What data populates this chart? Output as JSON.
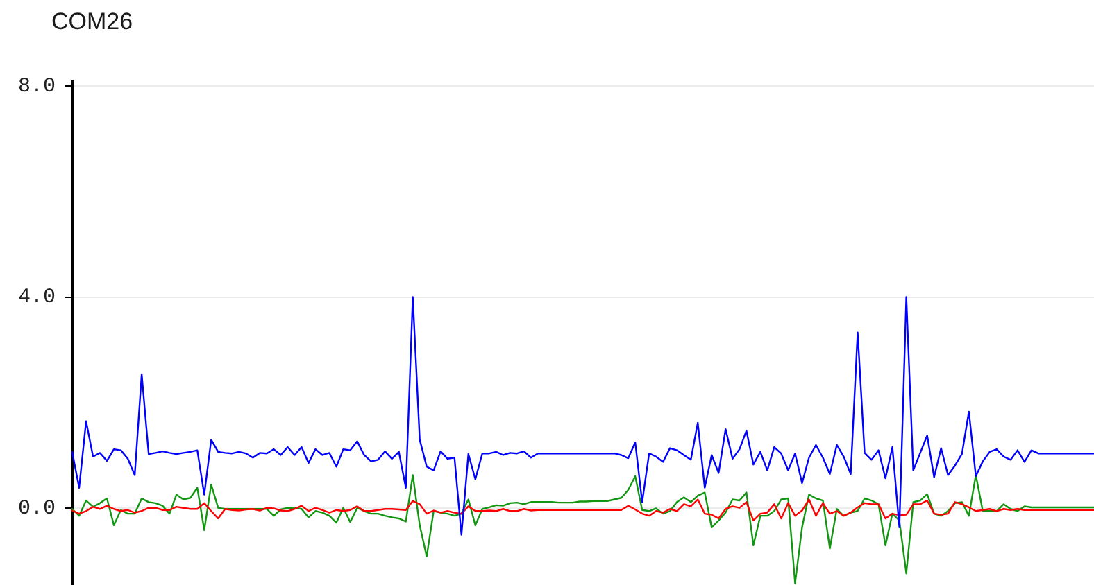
{
  "chart_data": {
    "type": "line",
    "title": "COM26",
    "categories": [
      null,
      null,
      null,
      null,
      null,
      null,
      null,
      null,
      null,
      null,
      null,
      null,
      null,
      null,
      null,
      null,
      null,
      null,
      null,
      null,
      null,
      null,
      null,
      null,
      null,
      null,
      null,
      null,
      null,
      null,
      null,
      null,
      null,
      null,
      null,
      null,
      null,
      null,
      null,
      null,
      null,
      null,
      null,
      null,
      null,
      null,
      null,
      null,
      null,
      null,
      null,
      null,
      null,
      null,
      null,
      null,
      null,
      null,
      null,
      null,
      null,
      null,
      null,
      null,
      null,
      null,
      null,
      null,
      null,
      null,
      null,
      null,
      null,
      null,
      null,
      null,
      null,
      null,
      null,
      null,
      null,
      null,
      null,
      null,
      null,
      null,
      null,
      null,
      null,
      null,
      null,
      null,
      null,
      null,
      null,
      null,
      null,
      null,
      null,
      null,
      null,
      null,
      null,
      null,
      null,
      null,
      null,
      null,
      null,
      null,
      null,
      null,
      null,
      null,
      null,
      null,
      null,
      null,
      null,
      null,
      null,
      null,
      null,
      null,
      null,
      null,
      null,
      null,
      null,
      null,
      null,
      null,
      null,
      null,
      null,
      null,
      null,
      null,
      null,
      null,
      null,
      null,
      null,
      null,
      null,
      null,
      null,
      null
    ],
    "series": [
      {
        "color": "#0000ff",
        "values": [
          1.07,
          0.39,
          1.65,
          0.98,
          1.05,
          0.9,
          1.12,
          1.1,
          0.94,
          0.63,
          2.54,
          1.03,
          1.05,
          1.08,
          1.05,
          1.03,
          1.05,
          1.07,
          1.1,
          0.26,
          1.3,
          1.07,
          1.05,
          1.04,
          1.07,
          1.04,
          0.96,
          1.05,
          1.04,
          1.12,
          1.01,
          1.16,
          1.01,
          1.16,
          0.86,
          1.12,
          1.01,
          1.05,
          0.79,
          1.12,
          1.1,
          1.27,
          1.01,
          0.89,
          0.92,
          1.08,
          0.94,
          1.07,
          0.39,
          4.0,
          1.3,
          0.79,
          0.72,
          1.08,
          0.94,
          0.96,
          -0.5,
          1.03,
          0.55,
          1.04,
          1.04,
          1.07,
          1.01,
          1.05,
          1.04,
          1.08,
          0.96,
          1.04,
          1.04,
          1.04,
          1.04,
          1.04,
          1.04,
          1.04,
          1.04,
          1.04,
          1.04,
          1.04,
          1.04,
          1.01,
          0.95,
          1.25,
          0.12,
          1.04,
          0.98,
          0.88,
          1.14,
          1.1,
          1.01,
          0.92,
          1.62,
          0.39,
          1.01,
          0.67,
          1.5,
          0.94,
          1.12,
          1.47,
          0.83,
          1.07,
          0.72,
          1.16,
          1.04,
          0.72,
          1.04,
          0.48,
          0.96,
          1.2,
          0.96,
          0.65,
          1.2,
          0.98,
          0.65,
          3.33,
          1.05,
          0.92,
          1.1,
          0.57,
          1.16,
          -0.36,
          4.0,
          0.72,
          1.05,
          1.38,
          0.59,
          1.14,
          0.63,
          0.81,
          1.03,
          1.83,
          0.61,
          0.89,
          1.07,
          1.12,
          0.98,
          0.92,
          1.1,
          0.88,
          1.1,
          1.04,
          1.04,
          1.04,
          1.04,
          1.04,
          1.04,
          1.04,
          1.04,
          1.04
        ]
      },
      {
        "color": "#ff0000",
        "values": [
          -0.04,
          -0.1,
          -0.05,
          0.03,
          -0.01,
          0.05,
          -0.01,
          -0.05,
          -0.03,
          -0.08,
          -0.05,
          0.01,
          0.01,
          -0.03,
          -0.03,
          0.03,
          0.01,
          -0.01,
          -0.01,
          0.1,
          -0.05,
          -0.19,
          -0.01,
          -0.03,
          -0.04,
          -0.02,
          -0.01,
          -0.04,
          0.01,
          0,
          -0.04,
          -0.05,
          -0.01,
          0.05,
          -0.05,
          0.01,
          -0.03,
          -0.08,
          -0.03,
          -0.05,
          -0.03,
          0.04,
          -0.05,
          -0.05,
          -0.03,
          -0.01,
          -0.01,
          -0.02,
          -0.03,
          0.14,
          0.08,
          -0.1,
          -0.04,
          -0.08,
          -0.05,
          -0.08,
          -0.1,
          0.04,
          -0.05,
          -0.05,
          -0.04,
          -0.05,
          -0.01,
          -0.05,
          -0.05,
          -0.01,
          -0.04,
          -0.03,
          -0.03,
          -0.03,
          -0.03,
          -0.03,
          -0.03,
          -0.03,
          -0.03,
          -0.03,
          -0.03,
          -0.03,
          -0.03,
          -0.03,
          0.05,
          -0.02,
          -0.1,
          -0.14,
          -0.05,
          -0.08,
          -0.01,
          -0.05,
          0.08,
          0.04,
          0.17,
          -0.1,
          -0.12,
          -0.19,
          -0.01,
          0.04,
          0.01,
          0.12,
          -0.23,
          -0.1,
          -0.08,
          0.08,
          -0.19,
          0.1,
          -0.14,
          -0.04,
          0.17,
          -0.14,
          0.1,
          -0.1,
          -0.05,
          -0.14,
          -0.08,
          0.02,
          0.1,
          0.08,
          0.08,
          -0.19,
          -0.1,
          -0.13,
          -0.12,
          0.08,
          0.08,
          0.15,
          -0.1,
          -0.12,
          -0.1,
          0.12,
          0.08,
          0.02,
          -0.05,
          -0.03,
          -0.01,
          -0.05,
          -0.01,
          -0.03,
          -0.01,
          -0.03,
          -0.03,
          -0.03,
          -0.03,
          -0.03,
          -0.03,
          -0.03,
          -0.03,
          -0.03,
          -0.03,
          -0.03
        ]
      },
      {
        "color": "#129612",
        "values": [
          -0.01,
          -0.14,
          0.15,
          0.03,
          0.1,
          0.19,
          -0.32,
          -0.03,
          -0.1,
          -0.1,
          0.19,
          0.12,
          0.1,
          0.05,
          -0.1,
          0.26,
          0.17,
          0.2,
          0.39,
          -0.41,
          0.45,
          0.01,
          -0.01,
          -0.01,
          -0.01,
          -0.01,
          -0.01,
          -0.01,
          -0.01,
          -0.14,
          -0.02,
          0.01,
          0.01,
          -0.01,
          -0.17,
          -0.05,
          -0.08,
          -0.14,
          -0.27,
          0.01,
          -0.26,
          0.01,
          -0.05,
          -0.1,
          -0.1,
          -0.14,
          -0.17,
          -0.19,
          -0.25,
          0.63,
          -0.32,
          -0.91,
          -0.05,
          -0.08,
          -0.1,
          -0.14,
          -0.1,
          0.17,
          -0.32,
          -0.01,
          0.02,
          0.06,
          0.05,
          0.1,
          0.11,
          0.08,
          0.12,
          0.12,
          0.12,
          0.12,
          0.11,
          0.11,
          0.11,
          0.13,
          0.13,
          0.14,
          0.14,
          0.14,
          0.17,
          0.2,
          0.35,
          0.61,
          -0.03,
          -0.05,
          0,
          -0.1,
          -0.05,
          0.12,
          0.21,
          0.12,
          0.24,
          0.3,
          -0.36,
          -0.23,
          -0.08,
          0.17,
          0.15,
          0.3,
          -0.7,
          -0.14,
          -0.14,
          -0.05,
          0.17,
          0.19,
          -1.42,
          -0.36,
          0.26,
          0.19,
          0.15,
          -0.76,
          -0.01,
          -0.14,
          -0.08,
          -0.05,
          0.19,
          0.15,
          0.08,
          -0.7,
          -0.1,
          -0.23,
          -1.23,
          0.12,
          0.15,
          0.27,
          -0.1,
          -0.14,
          -0.05,
          0.1,
          0.12,
          -0.14,
          0.63,
          -0.05,
          -0.05,
          -0.05,
          0.08,
          -0.01,
          -0.05,
          0.04,
          0.02,
          0.02,
          0.02,
          0.02,
          0.02,
          0.02,
          0.02,
          0.02,
          0.02,
          0.02
        ]
      }
    ],
    "ylim": [
      -1.45,
      8.1
    ],
    "yticks": [
      {
        "value": 8,
        "label": "8.0"
      },
      {
        "value": 4,
        "label": "4.0"
      },
      {
        "value": 0,
        "label": "0.0"
      }
    ],
    "grid": "y",
    "marker": "none",
    "tick_labels": "y"
  }
}
